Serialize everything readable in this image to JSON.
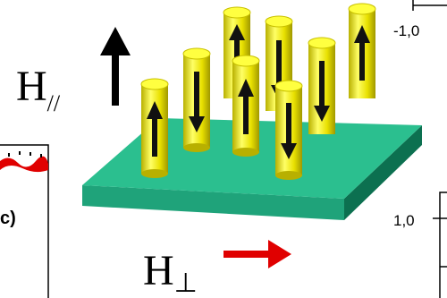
{
  "labels": {
    "h_parallel": "H",
    "h_parallel_sub": "//",
    "h_perp": "H",
    "h_perp_sub": "⊥",
    "panel_label": "c)",
    "tick_top": "-1,0",
    "tick_right": "1,0"
  }
}
